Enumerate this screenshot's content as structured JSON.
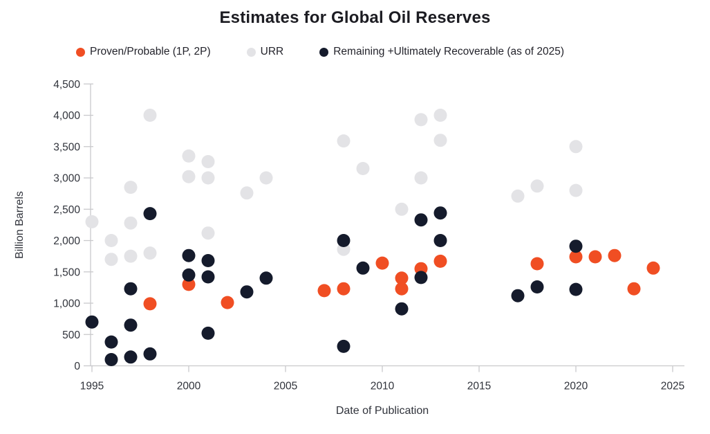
{
  "title": "Estimates for Global Oil Reserves",
  "colors": {
    "background": "#ffffff",
    "title_text": "#1c1c22",
    "tick_text": "#30333b",
    "axis_line": "#c9c9cc",
    "proven_probable": "#f04e23",
    "urr": "#e3e3e6",
    "remaining": "#151b2c"
  },
  "chart_data": {
    "type": "scatter",
    "title": "Estimates for Global Oil Reserves",
    "xlabel": "Date of Publication",
    "ylabel": "Billion Barrels",
    "xlim": [
      1995,
      2025
    ],
    "ylim": [
      0,
      4500
    ],
    "x_ticks": [
      1995,
      2000,
      2005,
      2010,
      2015,
      2020,
      2025
    ],
    "y_ticks": [
      0,
      500,
      1000,
      1500,
      2000,
      2500,
      3000,
      3500,
      4000,
      4500
    ],
    "grid": false,
    "legend_position": "top",
    "marker_diameter_px": 19,
    "z_order": [
      "URR",
      "Proven/Probable (1P, 2P)",
      "Remaining +Ultimately Recoverable (as of 2025)"
    ],
    "series": [
      {
        "name": "Proven/Probable (1P, 2P)",
        "color": "#f04e23",
        "points": [
          [
            1998,
            990
          ],
          [
            2000,
            1300
          ],
          [
            2002,
            1010
          ],
          [
            2007,
            1200
          ],
          [
            2008,
            1230
          ],
          [
            2010,
            1640
          ],
          [
            2011,
            1400
          ],
          [
            2011,
            1230
          ],
          [
            2012,
            1550
          ],
          [
            2013,
            1670
          ],
          [
            2018,
            1630
          ],
          [
            2020,
            1740
          ],
          [
            2021,
            1740
          ],
          [
            2022,
            1760
          ],
          [
            2023,
            1230
          ],
          [
            2024,
            1560
          ]
        ]
      },
      {
        "name": "URR",
        "color": "#e3e3e6",
        "points": [
          [
            1995,
            2300
          ],
          [
            1996,
            2000
          ],
          [
            1996,
            1700
          ],
          [
            1997,
            2850
          ],
          [
            1997,
            2280
          ],
          [
            1997,
            1750
          ],
          [
            1998,
            4000
          ],
          [
            1998,
            1800
          ],
          [
            2000,
            3350
          ],
          [
            2000,
            3020
          ],
          [
            2001,
            3260
          ],
          [
            2001,
            3000
          ],
          [
            2001,
            2120
          ],
          [
            2003,
            2760
          ],
          [
            2004,
            3000
          ],
          [
            2008,
            3590
          ],
          [
            2008,
            1860
          ],
          [
            2009,
            3150
          ],
          [
            2011,
            2500
          ],
          [
            2012,
            3930
          ],
          [
            2012,
            3000
          ],
          [
            2013,
            4000
          ],
          [
            2013,
            3600
          ],
          [
            2017,
            2710
          ],
          [
            2018,
            2870
          ],
          [
            2020,
            3500
          ],
          [
            2020,
            2800
          ]
        ]
      },
      {
        "name": "Remaining +Ultimately Recoverable (as of 2025)",
        "color": "#151b2c",
        "points": [
          [
            1995,
            700
          ],
          [
            1996,
            380
          ],
          [
            1996,
            100
          ],
          [
            1997,
            1230
          ],
          [
            1997,
            650
          ],
          [
            1997,
            140
          ],
          [
            1998,
            2430
          ],
          [
            1998,
            190
          ],
          [
            2000,
            1760
          ],
          [
            2000,
            1450
          ],
          [
            2001,
            1680
          ],
          [
            2001,
            1420
          ],
          [
            2001,
            520
          ],
          [
            2003,
            1180
          ],
          [
            2004,
            1400
          ],
          [
            2008,
            2000
          ],
          [
            2008,
            310
          ],
          [
            2009,
            1560
          ],
          [
            2011,
            910
          ],
          [
            2012,
            2330
          ],
          [
            2012,
            1410
          ],
          [
            2013,
            2440
          ],
          [
            2013,
            2000
          ],
          [
            2017,
            1120
          ],
          [
            2018,
            1260
          ],
          [
            2020,
            1910
          ],
          [
            2020,
            1220
          ]
        ]
      }
    ]
  }
}
